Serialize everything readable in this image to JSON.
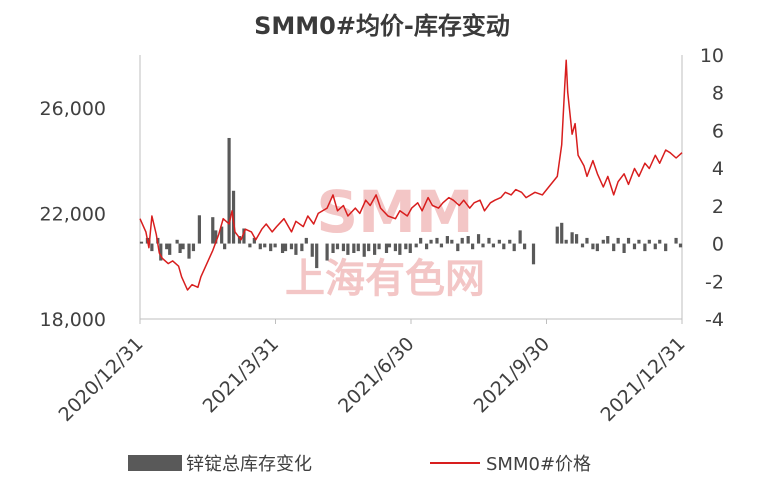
{
  "chart_data": {
    "type": "bar+line",
    "title": "SMM0#均价-库存变动",
    "watermark": [
      "SMM",
      "上海有色网"
    ],
    "x_tick_labels": [
      "2020/12/31",
      "2021/3/31",
      "2021/6/30",
      "2021/9/30",
      "2021/12/31"
    ],
    "x_range": [
      "2020-12-31",
      "2021-12-31"
    ],
    "y_left": {
      "range": [
        18000,
        28000
      ],
      "ticks": [
        18000,
        22000,
        26000
      ],
      "tick_labels": [
        "18,000",
        "22,000",
        "26,000"
      ]
    },
    "y_right": {
      "range": [
        -4,
        10
      ],
      "ticks": [
        -4,
        -2,
        0,
        2,
        4,
        6,
        8,
        10
      ],
      "tick_labels": [
        "-4",
        "-2",
        "0",
        "2",
        "4",
        "6",
        "8",
        "10"
      ]
    },
    "legend": {
      "placement": "bottom",
      "items": [
        "锌锭总库存变化",
        "SMM0#价格"
      ]
    },
    "colors": {
      "bars": "#595959",
      "line": "#d81e1e",
      "axis": "#bfbfbf",
      "watermark": "#f3c6c6"
    },
    "series": [
      {
        "name": "锌锭总库存变化",
        "type": "bar",
        "axis": "right",
        "points": [
          [
            "2021-01-01",
            0.1
          ],
          [
            "2021-01-05",
            0.3
          ],
          [
            "2021-01-06",
            0.2
          ],
          [
            "2021-01-08",
            -0.4
          ],
          [
            "2021-01-12",
            0.3
          ],
          [
            "2021-01-14",
            -0.9
          ],
          [
            "2021-01-18",
            -0.3
          ],
          [
            "2021-01-20",
            -0.6
          ],
          [
            "2021-01-25",
            0.2
          ],
          [
            "2021-01-27",
            -0.5
          ],
          [
            "2021-01-29",
            -0.3
          ],
          [
            "2021-02-02",
            -0.8
          ],
          [
            "2021-02-05",
            -0.4
          ],
          [
            "2021-02-09",
            1.5
          ],
          [
            "2021-02-18",
            1.4
          ],
          [
            "2021-02-20",
            0.7
          ],
          [
            "2021-02-24",
            0.9
          ],
          [
            "2021-02-26",
            -0.3
          ],
          [
            "2021-03-01",
            5.6
          ],
          [
            "2021-03-04",
            2.8
          ],
          [
            "2021-03-08",
            0.4
          ],
          [
            "2021-03-11",
            0.8
          ],
          [
            "2021-03-15",
            -0.2
          ],
          [
            "2021-03-18",
            0.3
          ],
          [
            "2021-03-22",
            -0.3
          ],
          [
            "2021-03-25",
            -0.2
          ],
          [
            "2021-03-29",
            -0.4
          ],
          [
            "2021-04-01",
            -0.2
          ],
          [
            "2021-04-06",
            -0.5
          ],
          [
            "2021-04-08",
            -0.4
          ],
          [
            "2021-04-12",
            -0.3
          ],
          [
            "2021-04-15",
            -0.6
          ],
          [
            "2021-04-19",
            -0.4
          ],
          [
            "2021-04-22",
            0.3
          ],
          [
            "2021-04-26",
            -0.7
          ],
          [
            "2021-04-29",
            -1.3
          ],
          [
            "2021-05-06",
            -0.9
          ],
          [
            "2021-05-10",
            -0.5
          ],
          [
            "2021-05-13",
            -0.3
          ],
          [
            "2021-05-17",
            -0.4
          ],
          [
            "2021-05-20",
            -0.6
          ],
          [
            "2021-05-24",
            -0.5
          ],
          [
            "2021-05-27",
            -0.4
          ],
          [
            "2021-05-31",
            -0.7
          ],
          [
            "2021-06-03",
            -0.4
          ],
          [
            "2021-06-07",
            -0.6
          ],
          [
            "2021-06-10",
            -0.3
          ],
          [
            "2021-06-15",
            -0.5
          ],
          [
            "2021-06-17",
            -0.2
          ],
          [
            "2021-06-21",
            -0.4
          ],
          [
            "2021-06-24",
            -0.6
          ],
          [
            "2021-06-28",
            -0.3
          ],
          [
            "2021-07-01",
            -0.5
          ],
          [
            "2021-07-05",
            -0.2
          ],
          [
            "2021-07-08",
            0.3
          ],
          [
            "2021-07-12",
            -0.3
          ],
          [
            "2021-07-15",
            0.2
          ],
          [
            "2021-07-19",
            0.3
          ],
          [
            "2021-07-22",
            -0.2
          ],
          [
            "2021-07-26",
            0.4
          ],
          [
            "2021-07-29",
            0.2
          ],
          [
            "2021-08-02",
            -0.4
          ],
          [
            "2021-08-05",
            0.3
          ],
          [
            "2021-08-09",
            0.4
          ],
          [
            "2021-08-12",
            -0.3
          ],
          [
            "2021-08-16",
            0.5
          ],
          [
            "2021-08-19",
            -0.2
          ],
          [
            "2021-08-23",
            0.3
          ],
          [
            "2021-08-26",
            -0.2
          ],
          [
            "2021-08-30",
            0.2
          ],
          [
            "2021-09-02",
            -0.3
          ],
          [
            "2021-09-06",
            0.2
          ],
          [
            "2021-09-09",
            -0.4
          ],
          [
            "2021-09-13",
            0.7
          ],
          [
            "2021-09-16",
            -0.3
          ],
          [
            "2021-09-22",
            -1.1
          ],
          [
            "2021-10-08",
            0.9
          ],
          [
            "2021-10-11",
            1.1
          ],
          [
            "2021-10-14",
            0.2
          ],
          [
            "2021-10-18",
            0.6
          ],
          [
            "2021-10-21",
            0.5
          ],
          [
            "2021-10-25",
            -0.2
          ],
          [
            "2021-10-28",
            0.3
          ],
          [
            "2021-11-01",
            -0.3
          ],
          [
            "2021-11-04",
            -0.4
          ],
          [
            "2021-11-08",
            0.2
          ],
          [
            "2021-11-11",
            0.4
          ],
          [
            "2021-11-15",
            -0.4
          ],
          [
            "2021-11-18",
            0.3
          ],
          [
            "2021-11-22",
            -0.5
          ],
          [
            "2021-11-25",
            0.3
          ],
          [
            "2021-11-29",
            -0.3
          ],
          [
            "2021-12-02",
            0.2
          ],
          [
            "2021-12-06",
            -0.4
          ],
          [
            "2021-12-09",
            0.2
          ],
          [
            "2021-12-13",
            -0.3
          ],
          [
            "2021-12-16",
            0.2
          ],
          [
            "2021-12-20",
            -0.4
          ],
          [
            "2021-12-27",
            0.3
          ],
          [
            "2021-12-30",
            -0.2
          ]
        ]
      },
      {
        "name": "SMM0#价格",
        "type": "line",
        "axis": "left",
        "points": [
          [
            "2020-12-31",
            21800
          ],
          [
            "2021-01-04",
            21300
          ],
          [
            "2021-01-06",
            20700
          ],
          [
            "2021-01-08",
            21900
          ],
          [
            "2021-01-11",
            21200
          ],
          [
            "2021-01-13",
            20500
          ],
          [
            "2021-01-15",
            20300
          ],
          [
            "2021-01-19",
            20100
          ],
          [
            "2021-01-22",
            20200
          ],
          [
            "2021-01-26",
            20000
          ],
          [
            "2021-01-28",
            19600
          ],
          [
            "2021-02-01",
            19100
          ],
          [
            "2021-02-04",
            19300
          ],
          [
            "2021-02-08",
            19200
          ],
          [
            "2021-02-10",
            19600
          ],
          [
            "2021-02-18",
            20600
          ],
          [
            "2021-02-22",
            21200
          ],
          [
            "2021-02-25",
            21800
          ],
          [
            "2021-03-01",
            21600
          ],
          [
            "2021-03-03",
            22100
          ],
          [
            "2021-03-05",
            21300
          ],
          [
            "2021-03-09",
            21000
          ],
          [
            "2021-03-12",
            21400
          ],
          [
            "2021-03-16",
            21300
          ],
          [
            "2021-03-19",
            21000
          ],
          [
            "2021-03-23",
            21400
          ],
          [
            "2021-03-26",
            21600
          ],
          [
            "2021-03-30",
            21300
          ],
          [
            "2021-04-02",
            21500
          ],
          [
            "2021-04-07",
            21800
          ],
          [
            "2021-04-12",
            21300
          ],
          [
            "2021-04-15",
            21700
          ],
          [
            "2021-04-20",
            21500
          ],
          [
            "2021-04-23",
            21900
          ],
          [
            "2021-04-27",
            21600
          ],
          [
            "2021-04-30",
            22000
          ],
          [
            "2021-05-06",
            22200
          ],
          [
            "2021-05-10",
            22700
          ],
          [
            "2021-05-13",
            22100
          ],
          [
            "2021-05-17",
            22300
          ],
          [
            "2021-05-20",
            21900
          ],
          [
            "2021-05-25",
            22200
          ],
          [
            "2021-05-28",
            22000
          ],
          [
            "2021-06-01",
            22500
          ],
          [
            "2021-06-04",
            22300
          ],
          [
            "2021-06-08",
            22700
          ],
          [
            "2021-06-11",
            22200
          ],
          [
            "2021-06-16",
            21900
          ],
          [
            "2021-06-21",
            21800
          ],
          [
            "2021-06-24",
            22100
          ],
          [
            "2021-06-29",
            21900
          ],
          [
            "2021-07-02",
            22200
          ],
          [
            "2021-07-06",
            22400
          ],
          [
            "2021-07-09",
            22100
          ],
          [
            "2021-07-13",
            22600
          ],
          [
            "2021-07-16",
            22300
          ],
          [
            "2021-07-20",
            22200
          ],
          [
            "2021-07-23",
            22400
          ],
          [
            "2021-07-27",
            22600
          ],
          [
            "2021-07-30",
            22500
          ],
          [
            "2021-08-03",
            22300
          ],
          [
            "2021-08-06",
            22500
          ],
          [
            "2021-08-10",
            22200
          ],
          [
            "2021-08-13",
            22400
          ],
          [
            "2021-08-17",
            22500
          ],
          [
            "2021-08-20",
            22100
          ],
          [
            "2021-08-24",
            22400
          ],
          [
            "2021-08-27",
            22500
          ],
          [
            "2021-08-31",
            22600
          ],
          [
            "2021-09-03",
            22800
          ],
          [
            "2021-09-07",
            22700
          ],
          [
            "2021-09-10",
            22900
          ],
          [
            "2021-09-14",
            22800
          ],
          [
            "2021-09-17",
            22600
          ],
          [
            "2021-09-23",
            22800
          ],
          [
            "2021-09-28",
            22700
          ],
          [
            "2021-10-08",
            23400
          ],
          [
            "2021-10-11",
            24600
          ],
          [
            "2021-10-13",
            26800
          ],
          [
            "2021-10-14",
            27800
          ],
          [
            "2021-10-15",
            26600
          ],
          [
            "2021-10-18",
            25000
          ],
          [
            "2021-10-20",
            25400
          ],
          [
            "2021-10-22",
            24200
          ],
          [
            "2021-10-26",
            23800
          ],
          [
            "2021-10-28",
            23400
          ],
          [
            "2021-11-01",
            24000
          ],
          [
            "2021-11-04",
            23500
          ],
          [
            "2021-11-08",
            23000
          ],
          [
            "2021-11-11",
            23400
          ],
          [
            "2021-11-15",
            22700
          ],
          [
            "2021-11-18",
            23200
          ],
          [
            "2021-11-22",
            23500
          ],
          [
            "2021-11-25",
            23100
          ],
          [
            "2021-11-29",
            23700
          ],
          [
            "2021-12-02",
            23400
          ],
          [
            "2021-12-06",
            23900
          ],
          [
            "2021-12-09",
            23700
          ],
          [
            "2021-12-13",
            24200
          ],
          [
            "2021-12-16",
            23900
          ],
          [
            "2021-12-20",
            24400
          ],
          [
            "2021-12-23",
            24300
          ],
          [
            "2021-12-27",
            24100
          ],
          [
            "2021-12-31",
            24300
          ]
        ]
      }
    ]
  }
}
